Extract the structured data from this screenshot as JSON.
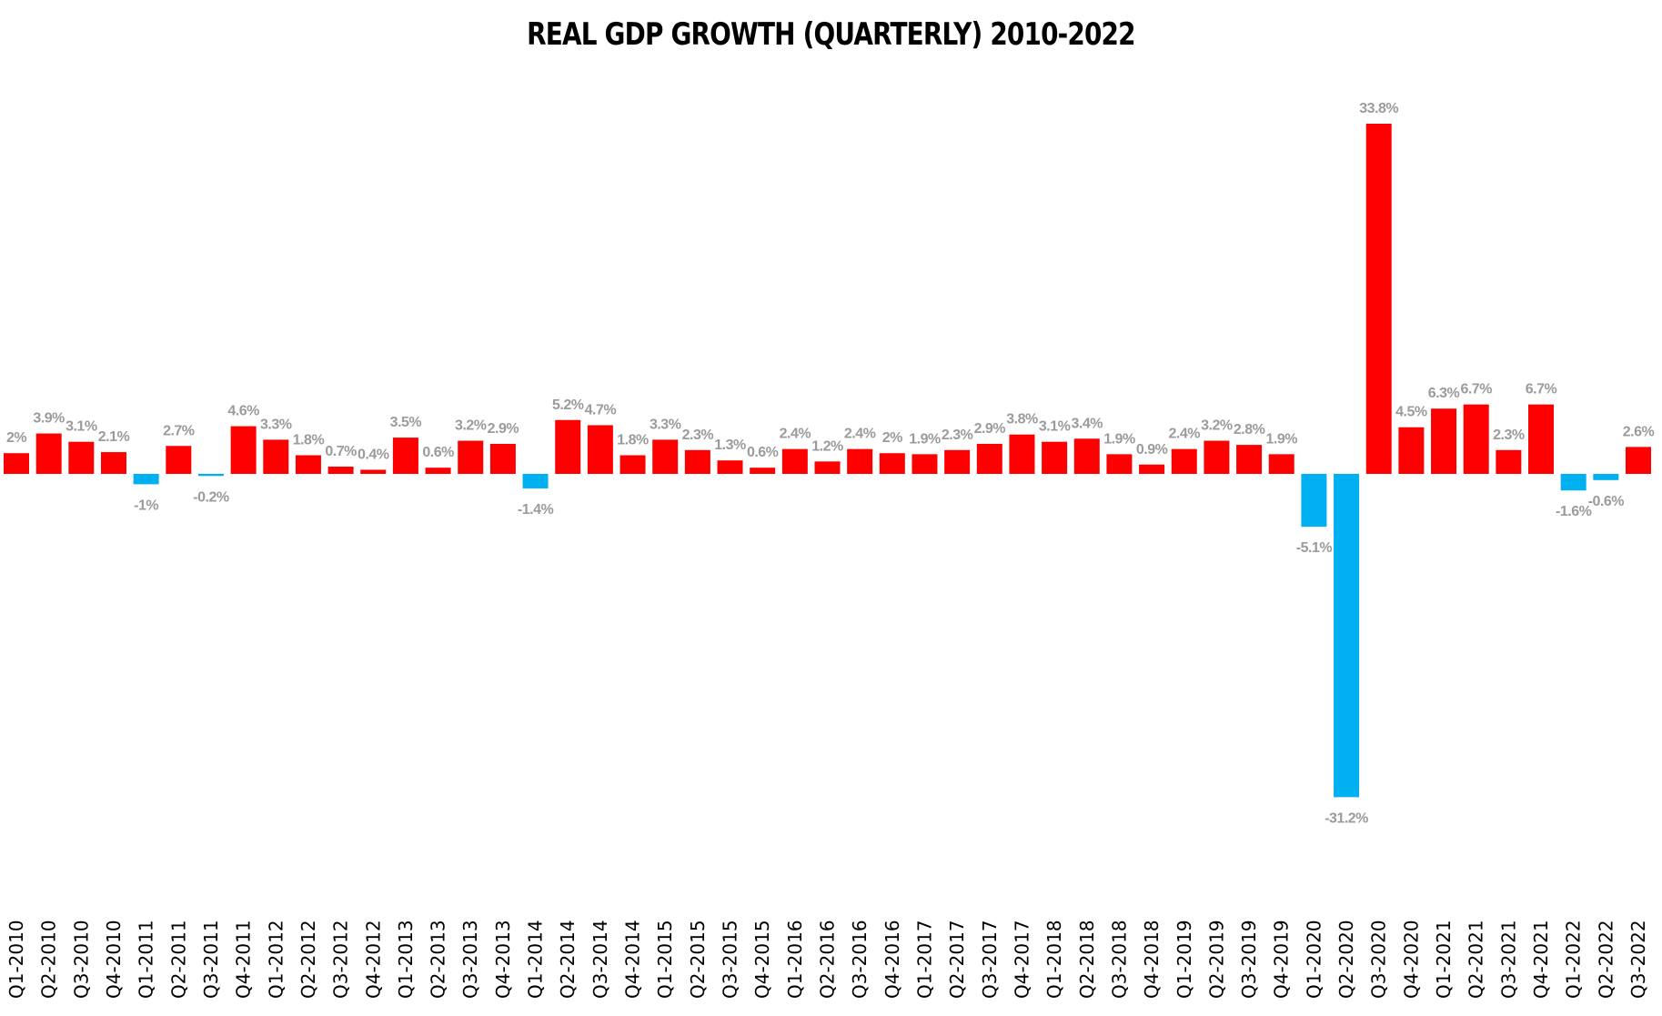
{
  "chart_data": {
    "type": "bar",
    "title": "REAL GDP GROWTH (QUARTERLY) 2010-2022",
    "xlabel": "",
    "ylabel": "",
    "ylim": [
      -31.2,
      33.8
    ],
    "grid": false,
    "legend": "none",
    "positive_color": "#ff0000",
    "negative_color": "#00b0f0",
    "label_color": "#9b9b9b",
    "categories": [
      "Q1-2010",
      "Q2-2010",
      "Q3-2010",
      "Q4-2010",
      "Q1-2011",
      "Q2-2011",
      "Q3-2011",
      "Q4-2011",
      "Q1-2012",
      "Q2-2012",
      "Q3-2012",
      "Q4-2012",
      "Q1-2013",
      "Q2-2013",
      "Q3-2013",
      "Q4-2013",
      "Q1-2014",
      "Q2-2014",
      "Q3-2014",
      "Q4-2014",
      "Q1-2015",
      "Q2-2015",
      "Q3-2015",
      "Q4-2015",
      "Q1-2016",
      "Q2-2016",
      "Q3-2016",
      "Q4-2016",
      "Q1-2017",
      "Q2-2017",
      "Q3-2017",
      "Q4-2017",
      "Q1-2018",
      "Q2-2018",
      "Q3-2018",
      "Q4-2018",
      "Q1-2019",
      "Q2-2019",
      "Q3-2019",
      "Q4-2019",
      "Q1-2020",
      "Q2-2020",
      "Q3-2020",
      "Q4-2020",
      "Q1-2021",
      "Q2-2021",
      "Q3-2021",
      "Q4-2021",
      "Q1-2022",
      "Q2-2022",
      "Q3-2022"
    ],
    "values": [
      2,
      3.9,
      3.1,
      2.1,
      -1,
      2.7,
      -0.2,
      4.6,
      3.3,
      1.8,
      0.7,
      0.4,
      3.5,
      0.6,
      3.2,
      2.9,
      -1.4,
      5.2,
      4.7,
      1.8,
      3.3,
      2.3,
      1.3,
      0.6,
      2.4,
      1.2,
      2.4,
      2,
      1.9,
      2.3,
      2.9,
      3.8,
      3.1,
      3.4,
      1.9,
      0.9,
      2.4,
      3.2,
      2.8,
      1.9,
      -5.1,
      -31.2,
      33.8,
      4.5,
      6.3,
      6.7,
      2.3,
      6.7,
      -1.6,
      -0.6,
      2.6
    ],
    "data_labels": [
      "2%",
      "3.9%",
      "3.1%",
      "2.1%",
      "-1%",
      "2.7%",
      "-0.2%",
      "4.6%",
      "3.3%",
      "1.8%",
      "0.7%",
      "0.4%",
      "3.5%",
      "0.6%",
      "3.2%",
      "2.9%",
      "-1.4%",
      "5.2%",
      "4.7%",
      "1.8%",
      "3.3%",
      "2.3%",
      "1.3%",
      "0.6%",
      "2.4%",
      "1.2%",
      "2.4%",
      "2%",
      "1.9%",
      "2.3%",
      "2.9%",
      "3.8%",
      "3.1%",
      "3.4%",
      "1.9%",
      "0.9%",
      "2.4%",
      "3.2%",
      "2.8%",
      "1.9%",
      "-5.1%",
      "-31.2%",
      "33.8%",
      "4.5%",
      "6.3%",
      "6.7%",
      "2.3%",
      "6.7%",
      "-1.6%",
      "-0.6%",
      "2.6%"
    ]
  }
}
